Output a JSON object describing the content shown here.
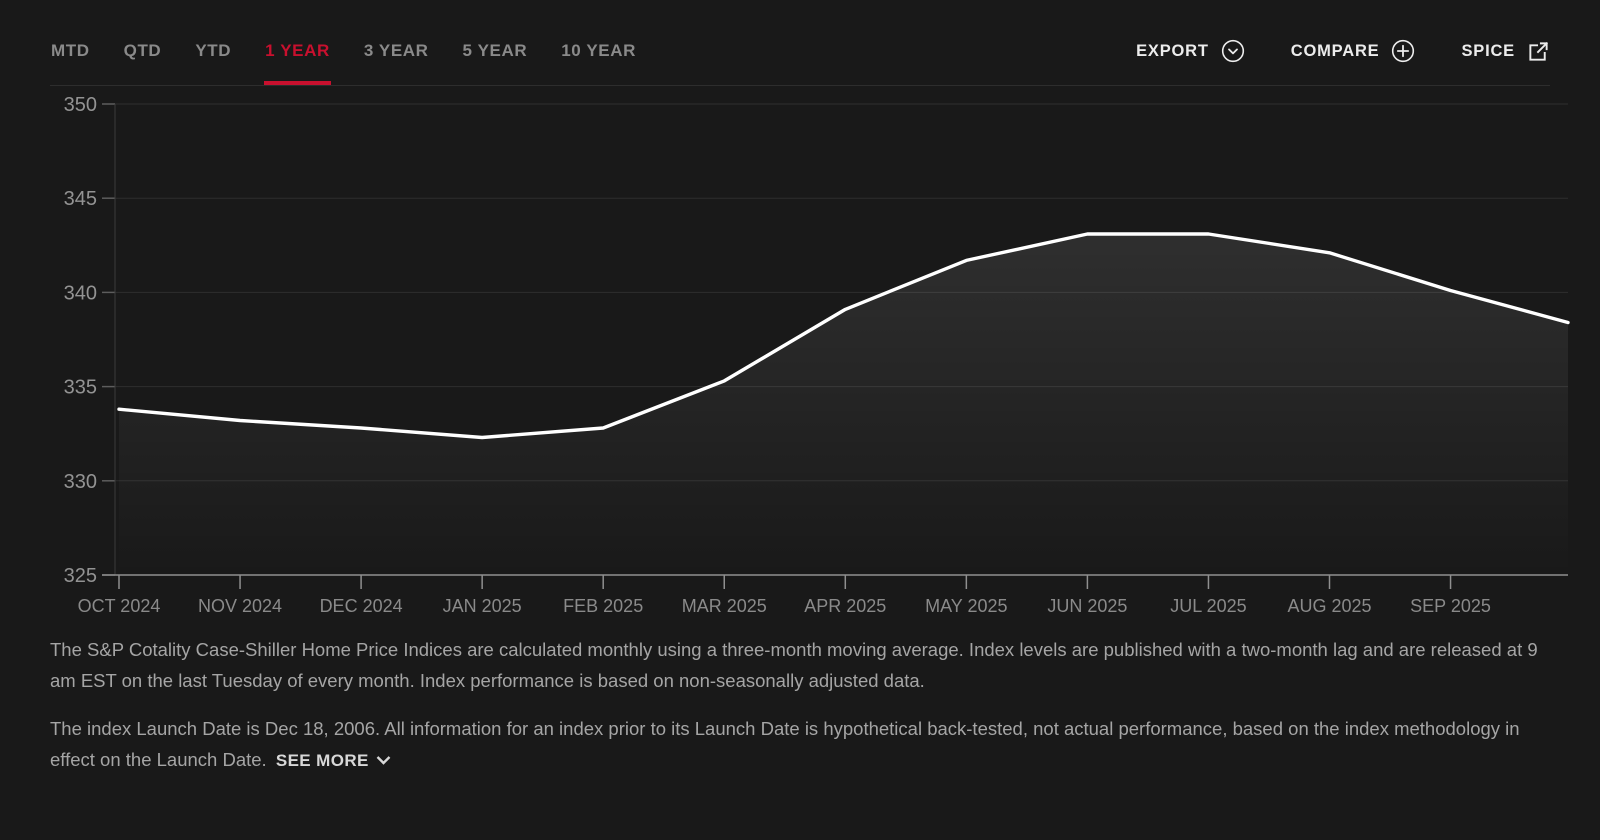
{
  "header": {
    "tabs": [
      {
        "label": "MTD",
        "active": false
      },
      {
        "label": "QTD",
        "active": false
      },
      {
        "label": "YTD",
        "active": false
      },
      {
        "label": "1 YEAR",
        "active": true
      },
      {
        "label": "3 YEAR",
        "active": false
      },
      {
        "label": "5 YEAR",
        "active": false
      },
      {
        "label": "10 YEAR",
        "active": false
      }
    ],
    "actions": [
      {
        "label": "EXPORT",
        "icon": "chevron-down-circle-icon"
      },
      {
        "label": "COMPARE",
        "icon": "plus-circle-icon"
      },
      {
        "label": "SPICE",
        "icon": "external-link-icon"
      }
    ]
  },
  "chart_data": {
    "type": "line",
    "categories": [
      "OCT 2024",
      "NOV 2024",
      "DEC 2024",
      "JAN 2025",
      "FEB 2025",
      "MAR 2025",
      "APR 2025",
      "MAY 2025",
      "JUN 2025",
      "JUL 2025",
      "AUG 2025",
      "SEP 2025"
    ],
    "values": [
      333.8,
      333.2,
      332.8,
      332.3,
      332.8,
      335.3,
      339.1,
      341.7,
      343.1,
      343.1,
      342.1,
      340.1
    ],
    "end_value": 338.4,
    "ylim": [
      325,
      350
    ],
    "yticks": [
      350,
      345,
      340,
      335,
      330,
      325
    ],
    "grid": "horizontal",
    "legend": "none",
    "line_color": "#ffffff",
    "selected_period": "1 YEAR"
  },
  "footer": {
    "paragraph1": "The S&P Cotality Case-Shiller Home Price Indices are calculated monthly using a three-month moving average. Index levels are published with a two-month lag and are released at 9 am EST on the last Tuesday of every month. Index performance is based on non-seasonally adjusted data.",
    "paragraph2": "The index Launch Date is Dec 18, 2006. All information for an index prior to its Launch Date is hypothetical back-tested, not actual performance, based on the index methodology in effect on the Launch Date.",
    "see_more_label": "SEE MORE"
  },
  "colors": {
    "accent_red": "#c8102e",
    "background": "#191919",
    "line": "#ffffff"
  }
}
